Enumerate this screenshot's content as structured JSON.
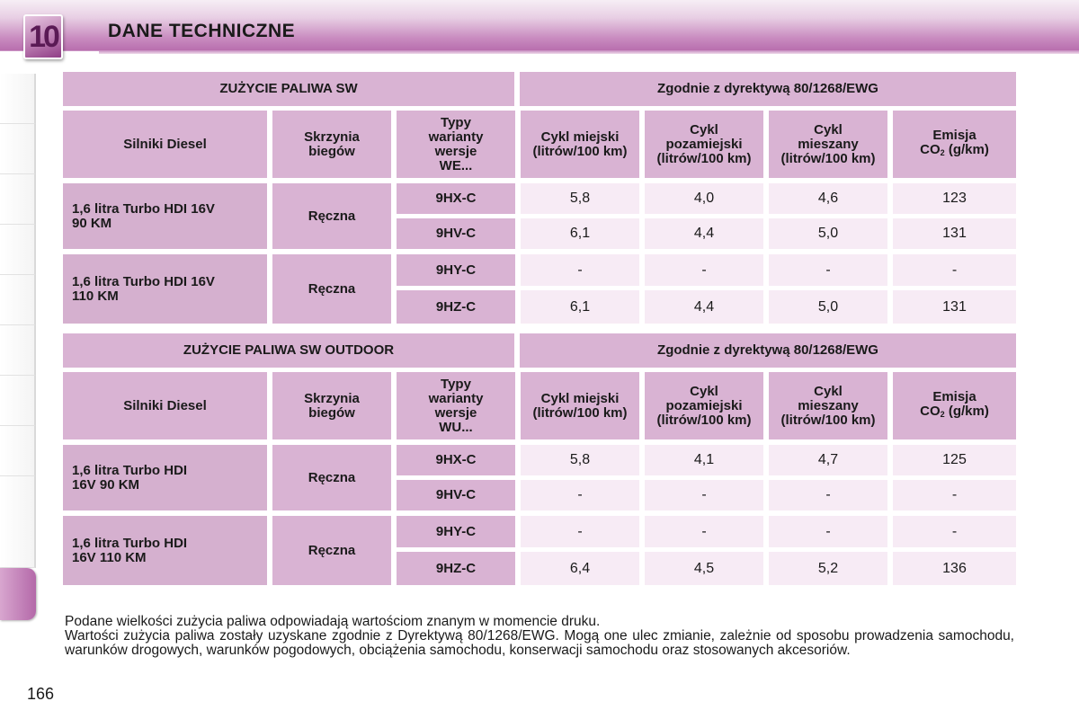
{
  "header": {
    "chapter": "10",
    "title": "DANE TECHNICZNE"
  },
  "tables": [
    {
      "title": "ZUŻYCIE PALIWA SW",
      "directive": "Zgodnie z dyrektywą 80/1268/EWG",
      "columns": {
        "engine": "Silniki Diesel",
        "gearbox": [
          "Skrzynia",
          "biegów"
        ],
        "types": [
          "Typy",
          "warianty",
          "wersje",
          "WE..."
        ],
        "urban": [
          "Cykl miejski",
          "(litrów/100 km)"
        ],
        "extra": [
          "Cykl",
          "pozamiejski",
          "(litrów/100 km)"
        ],
        "mixed": [
          "Cykl",
          "mieszany",
          "(litrów/100 km)"
        ],
        "co2": [
          "Emisja",
          "CO",
          "2",
          " (g/km)"
        ]
      },
      "groups": [
        {
          "engine": [
            "1,6 litra Turbo HDI 16V",
            "90 KM"
          ],
          "gearbox": "Ręczna",
          "rows": [
            {
              "type": "9HX-C",
              "urban": "5,8",
              "extra": "4,0",
              "mixed": "4,6",
              "co2": "123"
            },
            {
              "type": "9HV-C",
              "urban": "6,1",
              "extra": "4,4",
              "mixed": "5,0",
              "co2": "131"
            }
          ]
        },
        {
          "engine": [
            "1,6 litra Turbo HDI 16V",
            "110 KM"
          ],
          "gearbox": "Ręczna",
          "rows": [
            {
              "type": "9HY-C",
              "urban": "-",
              "extra": "-",
              "mixed": "-",
              "co2": "-"
            },
            {
              "type": "9HZ-C",
              "urban": "6,1",
              "extra": "4,4",
              "mixed": "5,0",
              "co2": "131"
            }
          ]
        }
      ]
    },
    {
      "title": "ZUŻYCIE PALIWA SW OUTDOOR",
      "directive": "Zgodnie z dyrektywą 80/1268/EWG",
      "columns": {
        "engine": "Silniki Diesel",
        "gearbox": [
          "Skrzynia",
          "biegów"
        ],
        "types": [
          "Typy",
          "warianty",
          "wersje",
          "WU..."
        ],
        "urban": [
          "Cykl miejski",
          "(litrów/100 km)"
        ],
        "extra": [
          "Cykl",
          "pozamiejski",
          "(litrów/100 km)"
        ],
        "mixed": [
          "Cykl",
          "mieszany",
          "(litrów/100 km)"
        ],
        "co2": [
          "Emisja",
          "CO",
          "2",
          " (g/km)"
        ]
      },
      "groups": [
        {
          "engine": [
            "1,6 litra Turbo HDI",
            "16V 90 KM"
          ],
          "gearbox": "Ręczna",
          "rows": [
            {
              "type": "9HX-C",
              "urban": "5,8",
              "extra": "4,1",
              "mixed": "4,7",
              "co2": "125"
            },
            {
              "type": "9HV-C",
              "urban": "-",
              "extra": "-",
              "mixed": "-",
              "co2": "-"
            }
          ]
        },
        {
          "engine": [
            "1,6 litra Turbo HDI",
            "16V 110 KM"
          ],
          "gearbox": "Ręczna",
          "rows": [
            {
              "type": "9HY-C",
              "urban": "-",
              "extra": "-",
              "mixed": "-",
              "co2": "-"
            },
            {
              "type": "9HZ-C",
              "urban": "6,4",
              "extra": "4,5",
              "mixed": "5,2",
              "co2": "136"
            }
          ]
        }
      ]
    }
  ],
  "footer": {
    "line1": "Podane wielkości zużycia paliwa odpowiadają wartościom znanym w momencie druku.",
    "line2": "Wartości zużycia paliwa zostały uzyskane zgodnie z Dyrektywą 80/1268/EWG. Mogą one ulec zmianie, zależnie od sposobu prowadzenia samochodu, warunków drogowych, warunków pogodowych, obciążenia samochodu, konserwacji samochodu oraz stosowanych akcesoriów."
  },
  "page_number": "166",
  "colors": {
    "header_band": "#c98cc0",
    "cell_header": "#d9b3d3",
    "cell_value": "#f7ebf5",
    "active_tab": "#b469a9"
  }
}
